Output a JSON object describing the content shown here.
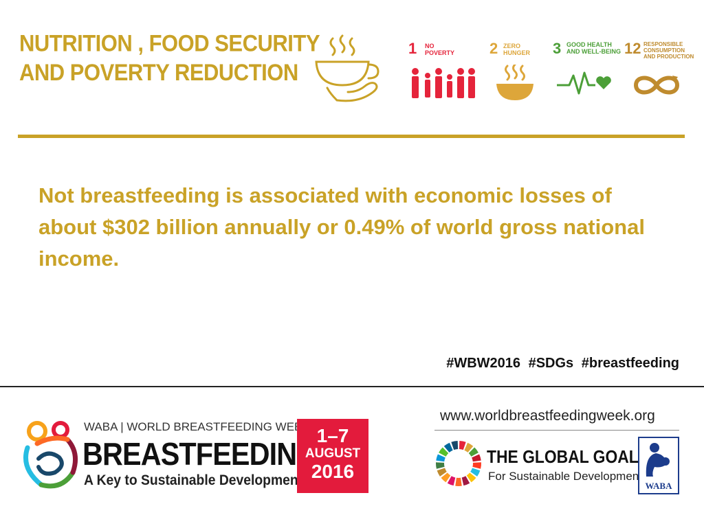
{
  "header": {
    "title_line1": "NUTRITION , FOOD SECURITY",
    "title_line2": "AND POVERTY REDUCTION",
    "icon": "bowl-in-hand-icon"
  },
  "sdgs": [
    {
      "number": "1",
      "label_line1": "NO",
      "label_line2": "POVERTY",
      "label_line3": "",
      "color": "#e5243b",
      "icon": "family-icon"
    },
    {
      "number": "2",
      "label_line1": "ZERO",
      "label_line2": "HUNGER",
      "label_line3": "",
      "color": "#dda63a",
      "icon": "bowl-icon"
    },
    {
      "number": "3",
      "label_line1": "GOOD HEALTH",
      "label_line2": "AND WELL-BEING",
      "label_line3": "",
      "color": "#4c9f38",
      "icon": "heartbeat-icon"
    },
    {
      "number": "12",
      "label_line1": "RESPONSIBLE",
      "label_line2": "CONSUMPTION",
      "label_line3": "AND PRODUCTION",
      "color": "#bf8b2e",
      "icon": "infinity-icon"
    }
  ],
  "accent_color": "#c9a227",
  "statement": "Not breastfeeding is associated with economic losses of about $302 billion annually or 0.49% of world gross national income.",
  "hashtags": "#WBW2016  #SDGs  #breastfeeding",
  "footer": {
    "wbw_top": "WABA | WORLD BREASTFEEDING WEEK",
    "wbw_main": "BREASTFEEDING",
    "wbw_sub": "A Key to Sustainable Development",
    "date_line1": "1–7",
    "date_line2": "AUGUST",
    "date_line3": "2016",
    "date_color": "#e31b3c",
    "url": "www.worldbreastfeedingweek.org",
    "goals_title": "THE GLOBAL GOALS",
    "goals_sub": "For Sustainable Development",
    "waba_label": "WABA"
  }
}
